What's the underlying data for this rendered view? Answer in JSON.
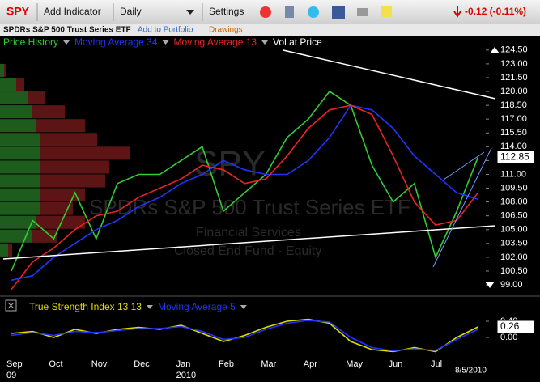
{
  "toolbar": {
    "symbol": "SPY",
    "add_indicator": "Add Indicator",
    "interval": "Daily",
    "settings": "Settings",
    "change": "-0.12 (-0.11%)"
  },
  "subheader": {
    "name": "SPDRs S&P 500 Trust Series ETF",
    "add_to_portfolio": "Add to Portfolio",
    "drawings": "Drawings"
  },
  "watermark": {
    "symbol": "SPY",
    "name": "SPDRs S&P 500 Trust Series ETF",
    "sector": "Financial Services",
    "fund_type": "Closed End Fund - Equity"
  },
  "date_stamp": "8/5/2010",
  "chart_data": [
    {
      "type": "line",
      "series": [
        {
          "name": "Price History",
          "color": "#33cc33",
          "values": [
            100.5,
            106,
            104,
            109,
            104,
            110,
            111,
            111,
            112.5,
            114,
            107,
            109,
            111,
            115,
            117,
            120,
            118.5,
            112,
            108,
            110,
            102,
            107,
            112.85
          ]
        },
        {
          "name": "Moving Average 34",
          "color": "#2233ff",
          "values": [
            99.5,
            100,
            102,
            103.5,
            105,
            106,
            107.5,
            108.5,
            110,
            111,
            112.5,
            111.5,
            111,
            111,
            112.5,
            115,
            118.5,
            118,
            116,
            113,
            111,
            109,
            108.3
          ]
        },
        {
          "name": "Moving Average 13",
          "color": "#ee2222",
          "values": [
            98.5,
            101.5,
            103,
            105,
            106.5,
            107,
            108.5,
            109.5,
            110.5,
            112,
            111.5,
            110,
            110.5,
            113,
            116,
            118,
            118.5,
            117.5,
            113,
            108,
            105.5,
            106,
            109
          ]
        }
      ],
      "volume_at_price": {
        "name": "Vol at Price",
        "up_color": "#1d5c1d",
        "down_color": "#5c1414",
        "prices": [
          102,
          103.5,
          105,
          106.5,
          108,
          109.5,
          111,
          112.5,
          114,
          115.5,
          117,
          118.5,
          120,
          121.5
        ],
        "up": [
          10,
          40,
          45,
          50,
          50,
          50,
          50,
          50,
          50,
          45,
          40,
          35,
          20,
          5
        ],
        "down": [
          5,
          30,
          60,
          40,
          55,
          80,
          85,
          110,
          70,
          60,
          40,
          20,
          10,
          3
        ]
      },
      "ylim": [
        98.3,
        125.1
      ],
      "yticks": [
        {
          "value": 99,
          "label": "99.00"
        },
        {
          "value": 100.5,
          "label": "100.50"
        },
        {
          "value": 102,
          "label": "102.00"
        },
        {
          "value": 103.5,
          "label": "103.50"
        },
        {
          "value": 105,
          "label": "105.00"
        },
        {
          "value": 106.5,
          "label": "106.50"
        },
        {
          "value": 108,
          "label": "108.00"
        },
        {
          "value": 109.5,
          "label": "109.50"
        },
        {
          "value": 111,
          "label": "111.00"
        },
        {
          "value": 112.5,
          "label": "112.50"
        },
        {
          "value": 114,
          "label": "114.00"
        },
        {
          "value": 115.5,
          "label": "115.50"
        },
        {
          "value": 117,
          "label": "117.00"
        },
        {
          "value": 118.5,
          "label": "118.50"
        },
        {
          "value": 120,
          "label": "120.00"
        },
        {
          "value": 121.5,
          "label": "121.50"
        },
        {
          "value": 123,
          "label": "123.00"
        },
        {
          "value": 124.5,
          "label": "124.50"
        }
      ]
    },
    {
      "type": "line",
      "categories": [
        "Sep",
        null,
        "Oct",
        null,
        "Nov",
        null,
        "Dec",
        null,
        "Jan",
        null,
        "Feb",
        null,
        "Mar",
        null,
        "Apr",
        null,
        "May",
        null,
        "Jun",
        null,
        "Jul",
        null,
        null
      ],
      "year_labels": [
        "09",
        null,
        null,
        null,
        null,
        null,
        null,
        null,
        "2010",
        null,
        null,
        null,
        null,
        null,
        null,
        null,
        null,
        null,
        null,
        null,
        null,
        null,
        null
      ],
      "series": [
        {
          "name": "True Strength Index 13 13",
          "color": "#dddd00",
          "values": [
            0.1,
            0.15,
            0.0,
            0.2,
            0.1,
            0.2,
            0.25,
            0.2,
            0.3,
            0.1,
            -0.1,
            0.05,
            0.25,
            0.4,
            0.45,
            0.35,
            -0.1,
            -0.3,
            -0.35,
            -0.25,
            -0.35,
            0.0,
            0.26
          ]
        },
        {
          "name": "Moving Average 5",
          "color": "#2233ff",
          "values": [
            0.05,
            0.12,
            0.05,
            0.15,
            0.12,
            0.17,
            0.22,
            0.22,
            0.27,
            0.15,
            -0.05,
            0.0,
            0.2,
            0.35,
            0.42,
            0.38,
            0.0,
            -0.25,
            -0.33,
            -0.28,
            -0.32,
            -0.05,
            0.2
          ]
        }
      ],
      "ylim": [
        -0.5,
        0.58
      ],
      "yticks": [
        {
          "value": 0.4,
          "label": "0.40"
        },
        {
          "value": 0,
          "label": "0.00"
        }
      ]
    }
  ]
}
